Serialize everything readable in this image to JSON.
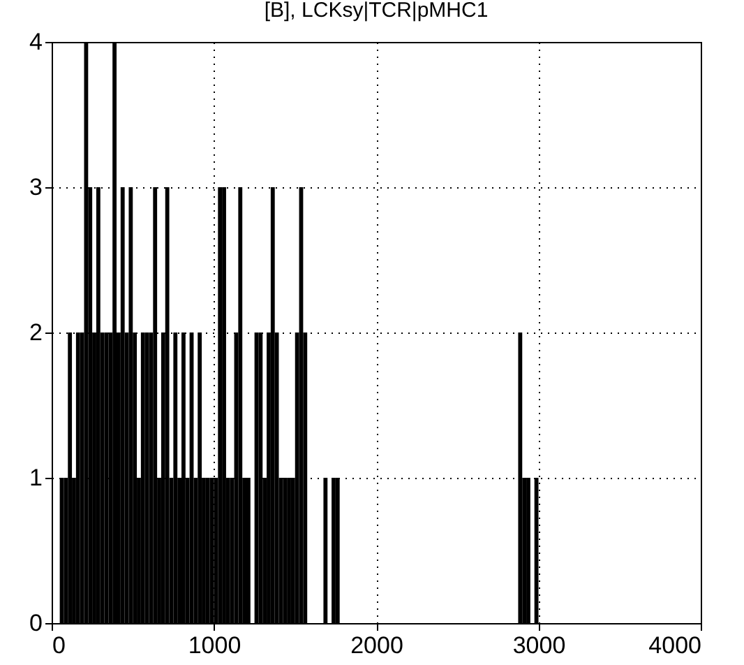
{
  "chart_data": {
    "type": "histogram",
    "title": "[B],  LCKsy|TCR|pMHC1",
    "color": "#000000",
    "bins": [
      0,
      25,
      50,
      75,
      100,
      125,
      150,
      175,
      200,
      225,
      250,
      275,
      300,
      325,
      350,
      375,
      400,
      425,
      450,
      475,
      500,
      525,
      550,
      575,
      600,
      625,
      650,
      675,
      700,
      725,
      750,
      775,
      800,
      825,
      850,
      875,
      900,
      925,
      950,
      975,
      1000,
      1025,
      1050,
      1075,
      1100,
      1125,
      1150,
      1175,
      1200,
      1225,
      1250,
      1275,
      1300,
      1325,
      1350,
      1375,
      1400,
      1425,
      1450,
      1475,
      1500,
      1525,
      1550,
      1575,
      1600,
      1625,
      1650,
      1675,
      1700,
      1725,
      1750,
      1775,
      1800,
      1825,
      1850,
      1875,
      1900,
      1925,
      1950,
      1975,
      2000,
      2025,
      2050,
      2075,
      2100,
      2125,
      2150,
      2175,
      2200,
      2225,
      2250,
      2275,
      2300,
      2325,
      2350,
      2375,
      2400,
      2425,
      2450,
      2475,
      2500,
      2525,
      2550,
      2575,
      2600,
      2625,
      2650,
      2675,
      2700,
      2725,
      2750,
      2775,
      2800,
      2825,
      2850,
      2875,
      2900,
      2925,
      2950,
      2975,
      3000
    ],
    "values": [
      0,
      0,
      1,
      1,
      2,
      1,
      2,
      2,
      4,
      3,
      2,
      3,
      2,
      2,
      2,
      4,
      2,
      3,
      2,
      3,
      2,
      1,
      2,
      2,
      2,
      3,
      1,
      2,
      3,
      1,
      2,
      1,
      2,
      1,
      2,
      1,
      2,
      1,
      1,
      1,
      1,
      3,
      3,
      1,
      1,
      2,
      3,
      1,
      1,
      0,
      2,
      2,
      1,
      2,
      3,
      2,
      1,
      1,
      1,
      1,
      2,
      3,
      2,
      0,
      0,
      0,
      0,
      1,
      0,
      1,
      1,
      0,
      0,
      0,
      0,
      0,
      0,
      0,
      0,
      0,
      0,
      0,
      0,
      0,
      0,
      0,
      0,
      0,
      0,
      0,
      0,
      0,
      0,
      0,
      0,
      0,
      0,
      0,
      0,
      0,
      0,
      0,
      0,
      0,
      0,
      0,
      0,
      0,
      0,
      0,
      0,
      0,
      0,
      0,
      0,
      2,
      1,
      1,
      0,
      1
    ],
    "xlim": [
      0,
      4000
    ],
    "xticks": [
      0,
      1000,
      2000,
      3000,
      4000
    ],
    "ylim": [
      0,
      4
    ],
    "yticks": [
      0,
      1,
      2,
      3,
      4
    ],
    "grid": true
  }
}
